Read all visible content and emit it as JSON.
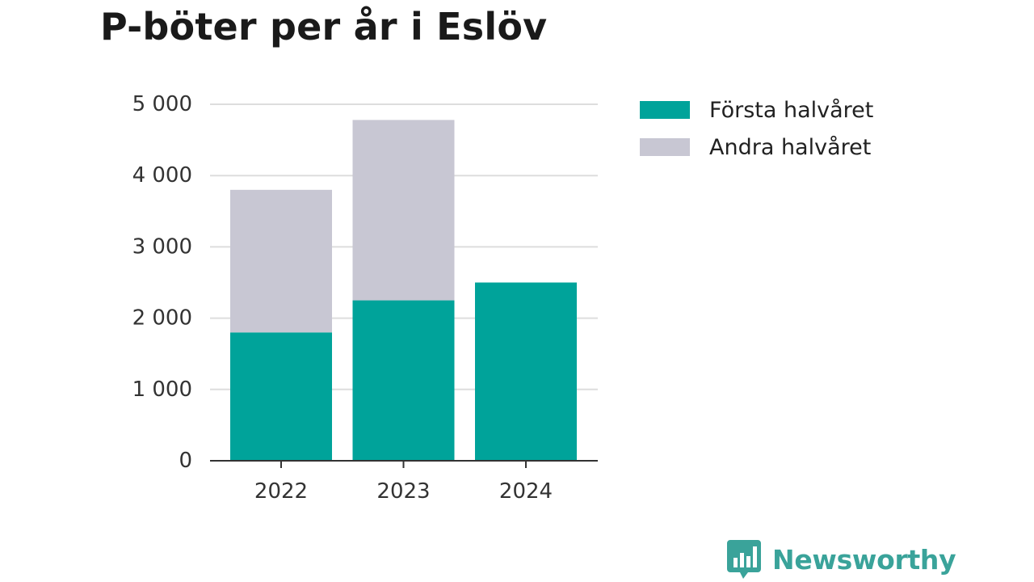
{
  "chart_data": {
    "type": "bar",
    "stacked": true,
    "title": "P-böter per år i Eslöv",
    "xlabel": "",
    "ylabel": "",
    "categories": [
      "2022",
      "2023",
      "2024"
    ],
    "series": [
      {
        "name": "Första halvåret",
        "color": "#00a39a",
        "values": [
          1800,
          2250,
          2500
        ]
      },
      {
        "name": "Andra halvåret",
        "color": "#c8c7d3",
        "values": [
          2000,
          2530,
          null
        ]
      }
    ],
    "ylim": [
      0,
      5000
    ],
    "yticks": [
      0,
      1000,
      2000,
      3000,
      4000,
      5000
    ],
    "ytick_labels": [
      "0",
      "1 000",
      "2 000",
      "3 000",
      "4 000",
      "5 000"
    ],
    "grid": true,
    "legend_position": "top-right"
  },
  "branding": {
    "name": "Newsworthy",
    "color": "#3aa39a",
    "icon": "bar-chart-speech-bubble-icon"
  }
}
